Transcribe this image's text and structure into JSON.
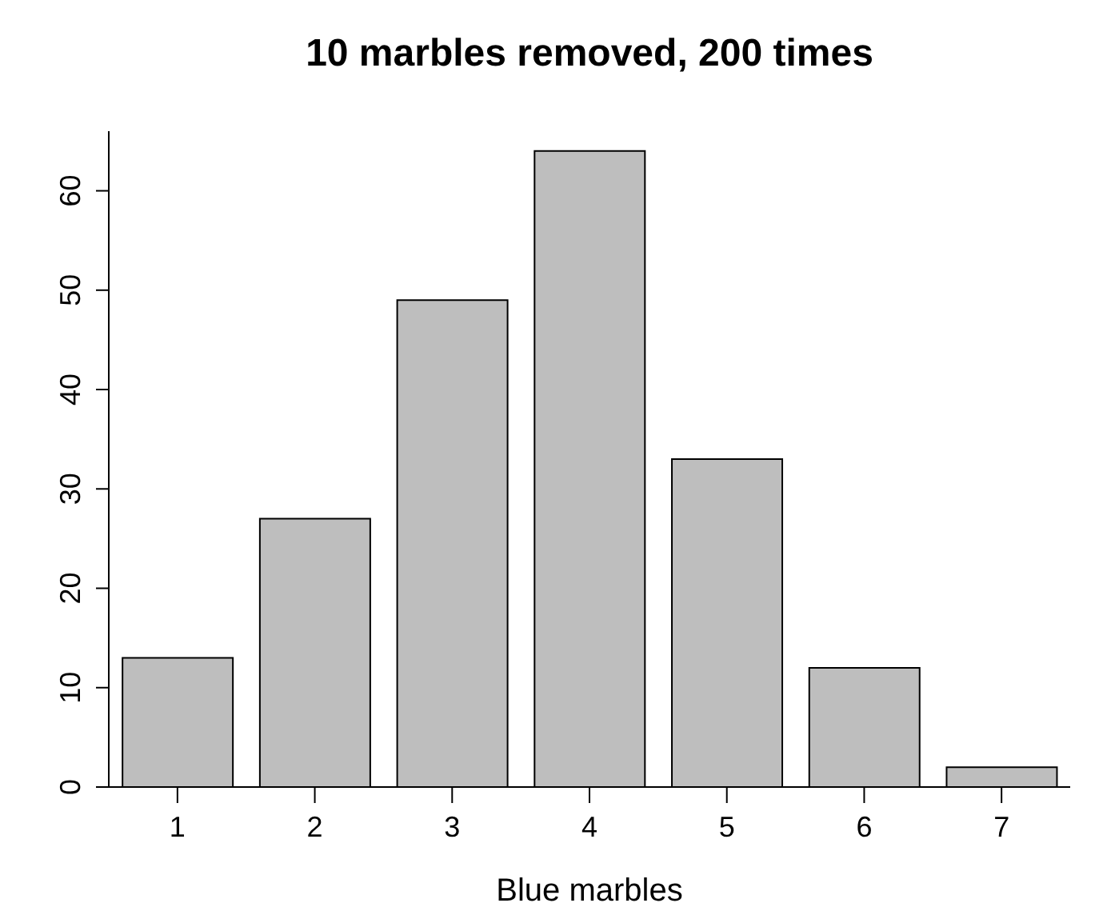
{
  "chart_data": {
    "type": "bar",
    "title": "10 marbles removed, 200 times",
    "xlabel": "Blue marbles",
    "categories": [
      "1",
      "2",
      "3",
      "4",
      "5",
      "6",
      "7"
    ],
    "values": [
      13,
      27,
      49,
      64,
      33,
      12,
      2
    ],
    "color": "#bebebe",
    "ylim": [
      0,
      66
    ],
    "yticks": [
      0,
      10,
      20,
      30,
      40,
      50,
      60
    ],
    "grid": false
  }
}
